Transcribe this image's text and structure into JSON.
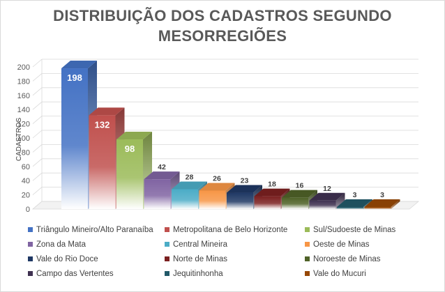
{
  "chart_data": {
    "type": "bar",
    "title": "DISTRIBUIÇÃO DOS CADASTROS SEGUNDO MESORREGIÕES",
    "title_lines": [
      "DISTRIBUIÇÃO DOS CADASTROS SEGUNDO",
      "MESORREGIÕES"
    ],
    "xlabel": "",
    "ylabel": "CADASTROS",
    "ylim": [
      0,
      200
    ],
    "y_ticks": [
      0,
      20,
      40,
      60,
      80,
      100,
      120,
      140,
      160,
      180,
      200
    ],
    "grid": true,
    "style": "3d",
    "legend_position": "bottom",
    "categories": [
      "Triângulo Mineiro/Alto Paranaíba",
      "Metropolitana de Belo Horizonte",
      "Sul/Sudoeste de Minas",
      "Zona da Mata",
      "Central Mineira",
      "Oeste de Minas",
      "Vale do Rio Doce",
      "Norte de Minas",
      "Noroeste de Minas",
      "Campo das Vertentes",
      "Jequitinhonha",
      "Vale do Mucuri"
    ],
    "values": [
      198,
      132,
      98,
      42,
      28,
      26,
      23,
      18,
      16,
      12,
      3,
      3
    ],
    "data_labels": [
      "198",
      "132",
      "98",
      "42",
      "28",
      "26",
      "23",
      "18",
      "16",
      "12",
      "3",
      "3"
    ],
    "colors": [
      "#4472c4",
      "#c0504d",
      "#9bbb59",
      "#8064a2",
      "#4bacc6",
      "#f79646",
      "#1f3864",
      "#7b2020",
      "#4f6228",
      "#3f3151",
      "#215968",
      "#974806"
    ]
  }
}
